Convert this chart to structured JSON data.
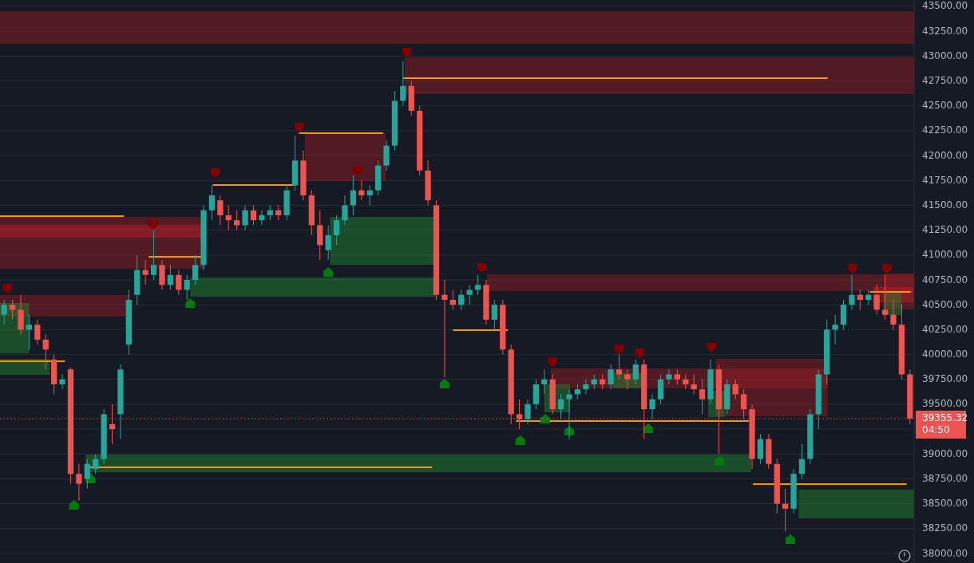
{
  "chart_data": {
    "type": "candlestick",
    "grid": "y",
    "tick_labels": "y",
    "colors": [
      "#26a69a",
      "#ef5350",
      "#ef5350",
      "#26a69a",
      "#ef5350",
      "#ef5350",
      "#ef5350",
      "#26a69a",
      "#ef5350",
      "#ef5350",
      "#26a69a",
      "#26a69a",
      "#26a69a",
      "#ef5350",
      "#26a69a",
      "#26a69a",
      "#26a69a",
      "#ef5350",
      "#26a69a",
      "#ef5350",
      "#26a69a",
      "#ef5350",
      "#26a69a",
      "#26a69a",
      "#26a69a",
      "#26a69a",
      "#ef5350",
      "#ef5350",
      "#ef5350",
      "#26a69a",
      "#ef5350",
      "#26a69a",
      "#26a69a",
      "#ef5350",
      "#26a69a",
      "#26a69a",
      "#ef5350",
      "#ef5350",
      "#ef5350",
      "#26a69a",
      "#26a69a",
      "#26a69a",
      "#26a69a",
      "#ef5350",
      "#26a69a",
      "#26a69a",
      "#26a69a",
      "#26a69a",
      "#26a69a",
      "#ef5350",
      "#ef5350",
      "#ef5350",
      "#ef5350",
      "#ef5350",
      "#ef5350",
      "#26a69a",
      "#26a69a",
      "#26a69a",
      "#ef5350",
      "#26a69a",
      "#ef5350",
      "#ef5350",
      "#ef5350",
      "#26a69a",
      "#26a69a",
      "#26a69a",
      "#ef5350",
      "#26a69a",
      "#26a69a",
      "#26a69a",
      "#26a69a",
      "#26a69a",
      "#ef5350",
      "#26a69a",
      "#ef5350",
      "#ef5350",
      "#26a69a",
      "#ef5350",
      "#26a69a",
      "#26a69a",
      "#26a69a",
      "#ef5350",
      "#ef5350",
      "#ef5350",
      "#ef5350",
      "#26a69a",
      "#ef5350",
      "#26a69a",
      "#ef5350",
      "#ef5350",
      "#ef5350",
      "#26a69a",
      "#ef5350",
      "#ef5350",
      "#ef5350",
      "#26a69a",
      "#26a69a",
      "#26a69a",
      "#26a69a",
      "#26a69a",
      "#26a69a",
      "#26a69a",
      "#26a69a",
      "#ef5350",
      "#26a69a",
      "#ef5350",
      "#ef5350",
      "#ef5350",
      "#ef5350",
      "#ef5350"
    ],
    "ylim": [
      37904,
      43564
    ],
    "yticks": [
      {
        "value": 38000,
        "label": "38000.00"
      },
      {
        "value": 38250,
        "label": "38250.00"
      },
      {
        "value": 38500,
        "label": "38500.00"
      },
      {
        "value": 38750,
        "label": "38750.00"
      },
      {
        "value": 39000,
        "label": "39000.00"
      },
      {
        "value": 39250,
        "label": null
      },
      {
        "value": 39500,
        "label": "39500.00"
      },
      {
        "value": 39750,
        "label": "39750.00"
      },
      {
        "value": 40000,
        "label": "40000.00"
      },
      {
        "value": 40250,
        "label": "40250.00"
      },
      {
        "value": 40500,
        "label": "40500.00"
      },
      {
        "value": 40750,
        "label": "40750.00"
      },
      {
        "value": 41000,
        "label": "41000.00"
      },
      {
        "value": 41250,
        "label": "41250.00"
      },
      {
        "value": 41500,
        "label": "41500.00"
      },
      {
        "value": 41750,
        "label": "41750.00"
      },
      {
        "value": 42000,
        "label": "42000.00"
      },
      {
        "value": 42250,
        "label": "42250.00"
      },
      {
        "value": 42500,
        "label": "42500.00"
      },
      {
        "value": 42750,
        "label": "42750.00"
      },
      {
        "value": 43000,
        "label": "43000.00"
      },
      {
        "value": 43250,
        "label": "43250.00"
      },
      {
        "value": 43500,
        "label": "43500.00"
      }
    ],
    "categories": [
      null,
      null,
      null,
      null,
      null,
      null,
      null,
      null,
      null,
      null,
      null,
      null,
      null,
      null,
      null,
      null,
      null,
      null,
      null,
      null,
      null,
      null,
      null,
      null,
      null,
      null,
      null,
      null,
      null,
      null,
      null,
      null,
      null,
      null,
      null,
      null,
      null,
      null,
      null,
      null,
      null,
      null,
      null,
      null,
      null,
      null,
      null,
      null,
      null,
      null,
      null,
      null,
      null,
      null,
      null,
      null,
      null,
      null,
      null,
      null,
      null,
      null,
      null,
      null,
      null,
      null,
      null,
      null,
      null,
      null,
      null,
      null,
      null,
      null,
      null,
      null,
      null,
      null,
      null,
      null,
      null,
      null,
      null,
      null,
      null,
      null,
      null,
      null,
      null,
      null,
      null,
      null,
      null,
      null,
      null,
      null,
      null,
      null,
      null,
      null,
      null,
      null,
      null,
      null,
      null,
      null,
      null,
      null,
      null,
      null
    ],
    "ohlc": [
      [
        40400,
        40550,
        40300,
        40500
      ],
      [
        40500,
        40550,
        40350,
        40450
      ],
      [
        40450,
        40600,
        40200,
        40250
      ],
      [
        40250,
        40400,
        40050,
        40300
      ],
      [
        40300,
        40350,
        40100,
        40150
      ],
      [
        40150,
        40200,
        39850,
        40050
      ],
      [
        39950,
        40000,
        39600,
        39700
      ],
      [
        39700,
        39800,
        39650,
        39750
      ],
      [
        39850,
        39870,
        38700,
        38800
      ],
      [
        38800,
        38900,
        38530,
        38700
      ],
      [
        38750,
        38950,
        38650,
        38900
      ],
      [
        38850,
        39000,
        38800,
        38950
      ],
      [
        38950,
        39450,
        38900,
        39400
      ],
      [
        39300,
        39500,
        39100,
        39250
      ],
      [
        39400,
        39900,
        39150,
        39850
      ],
      [
        40100,
        40650,
        40000,
        40550
      ],
      [
        40600,
        41000,
        40500,
        40850
      ],
      [
        40850,
        40950,
        40700,
        40800
      ],
      [
        40800,
        41250,
        40750,
        40900
      ],
      [
        40900,
        40950,
        40650,
        40700
      ],
      [
        40700,
        40900,
        40650,
        40800
      ],
      [
        40800,
        40850,
        40600,
        40650
      ],
      [
        40650,
        40800,
        40550,
        40750
      ],
      [
        40750,
        41000,
        40700,
        40900
      ],
      [
        40900,
        41500,
        40850,
        41450
      ],
      [
        41450,
        41700,
        41350,
        41600
      ],
      [
        41550,
        41600,
        41300,
        41400
      ],
      [
        41400,
        41500,
        41250,
        41350
      ],
      [
        41350,
        41450,
        41250,
        41300
      ],
      [
        41300,
        41500,
        41250,
        41450
      ],
      [
        41450,
        41500,
        41300,
        41350
      ],
      [
        41350,
        41450,
        41300,
        41400
      ],
      [
        41400,
        41500,
        41350,
        41450
      ],
      [
        41450,
        41500,
        41350,
        41400
      ],
      [
        41400,
        41700,
        41350,
        41650
      ],
      [
        41700,
        42200,
        41650,
        41950
      ],
      [
        41950,
        42050,
        41550,
        41600
      ],
      [
        41600,
        41650,
        41200,
        41300
      ],
      [
        41300,
        41450,
        40950,
        41100
      ],
      [
        41050,
        41300,
        40950,
        41200
      ],
      [
        41200,
        41400,
        41100,
        41350
      ],
      [
        41350,
        41600,
        41300,
        41500
      ],
      [
        41500,
        41800,
        41400,
        41650
      ],
      [
        41650,
        41750,
        41550,
        41600
      ],
      [
        41600,
        41700,
        41500,
        41650
      ],
      [
        41650,
        41950,
        41600,
        41900
      ],
      [
        41900,
        42150,
        41850,
        42100
      ],
      [
        42100,
        42650,
        42050,
        42550
      ],
      [
        42550,
        42950,
        42500,
        42700
      ],
      [
        42700,
        42750,
        42400,
        42450
      ],
      [
        42450,
        42500,
        41800,
        41850
      ],
      [
        41850,
        41950,
        41500,
        41550
      ],
      [
        41500,
        41550,
        40550,
        40600
      ],
      [
        40600,
        40750,
        39770,
        40550
      ],
      [
        40550,
        40650,
        40450,
        40500
      ],
      [
        40500,
        40650,
        40450,
        40600
      ],
      [
        40600,
        40700,
        40500,
        40650
      ],
      [
        40650,
        40800,
        40600,
        40700
      ],
      [
        40700,
        40750,
        40300,
        40350
      ],
      [
        40350,
        40550,
        40250,
        40500
      ],
      [
        40500,
        40550,
        40000,
        40050
      ],
      [
        40050,
        40100,
        39300,
        39400
      ],
      [
        39400,
        39550,
        39250,
        39350
      ],
      [
        39350,
        39550,
        39300,
        39500
      ],
      [
        39500,
        39750,
        39450,
        39700
      ],
      [
        39700,
        39850,
        39600,
        39750
      ],
      [
        39750,
        39800,
        39400,
        39450
      ],
      [
        39450,
        39600,
        39350,
        39550
      ],
      [
        39550,
        39650,
        39150,
        39600
      ],
      [
        39600,
        39700,
        39550,
        39650
      ],
      [
        39650,
        39750,
        39600,
        39700
      ],
      [
        39700,
        39800,
        39650,
        39750
      ],
      [
        39750,
        39800,
        39650,
        39700
      ],
      [
        39700,
        39900,
        39650,
        39850
      ],
      [
        39850,
        40000,
        39750,
        39800
      ],
      [
        39800,
        39850,
        39650,
        39750
      ],
      [
        39750,
        39950,
        39700,
        39900
      ],
      [
        39900,
        39950,
        39150,
        39450
      ],
      [
        39450,
        39600,
        39350,
        39550
      ],
      [
        39550,
        39800,
        39500,
        39750
      ],
      [
        39750,
        39850,
        39700,
        39800
      ],
      [
        39800,
        39850,
        39700,
        39750
      ],
      [
        39750,
        39800,
        39650,
        39700
      ],
      [
        39700,
        39800,
        39600,
        39650
      ],
      [
        39650,
        39750,
        39400,
        39550
      ],
      [
        39550,
        39950,
        39500,
        39850
      ],
      [
        39850,
        39900,
        39000,
        39450
      ],
      [
        39450,
        39750,
        39400,
        39700
      ],
      [
        39700,
        39750,
        39550,
        39600
      ],
      [
        39600,
        39650,
        39350,
        39450
      ],
      [
        39450,
        39500,
        38850,
        38950
      ],
      [
        38950,
        39200,
        38900,
        39150
      ],
      [
        39150,
        39200,
        38850,
        38900
      ],
      [
        38900,
        38950,
        38400,
        38500
      ],
      [
        38500,
        38650,
        38220,
        38450
      ],
      [
        38450,
        38850,
        38400,
        38800
      ],
      [
        38800,
        39100,
        38750,
        38950
      ],
      [
        38950,
        39450,
        38900,
        39400
      ],
      [
        39400,
        39850,
        39250,
        39800
      ],
      [
        39800,
        40350,
        39700,
        40250
      ],
      [
        40250,
        40400,
        40100,
        40300
      ],
      [
        40300,
        40550,
        40250,
        40500
      ],
      [
        40500,
        40800,
        40450,
        40600
      ],
      [
        40600,
        40650,
        40450,
        40550
      ],
      [
        40550,
        40650,
        40500,
        40600
      ],
      [
        40600,
        40700,
        40400,
        40450
      ],
      [
        40450,
        40800,
        40350,
        40400
      ],
      [
        40400,
        40550,
        40250,
        40300
      ],
      [
        40300,
        40500,
        39750,
        39800
      ],
      [
        39800,
        39850,
        39300,
        39355.32
      ]
    ],
    "ref_lines": [
      {
        "axis": "y",
        "value": 39355.32,
        "label": "39355.32",
        "color": "#ef5350",
        "line_style": "dotted"
      }
    ],
    "annotations": [
      "04:50"
    ]
  }
}
